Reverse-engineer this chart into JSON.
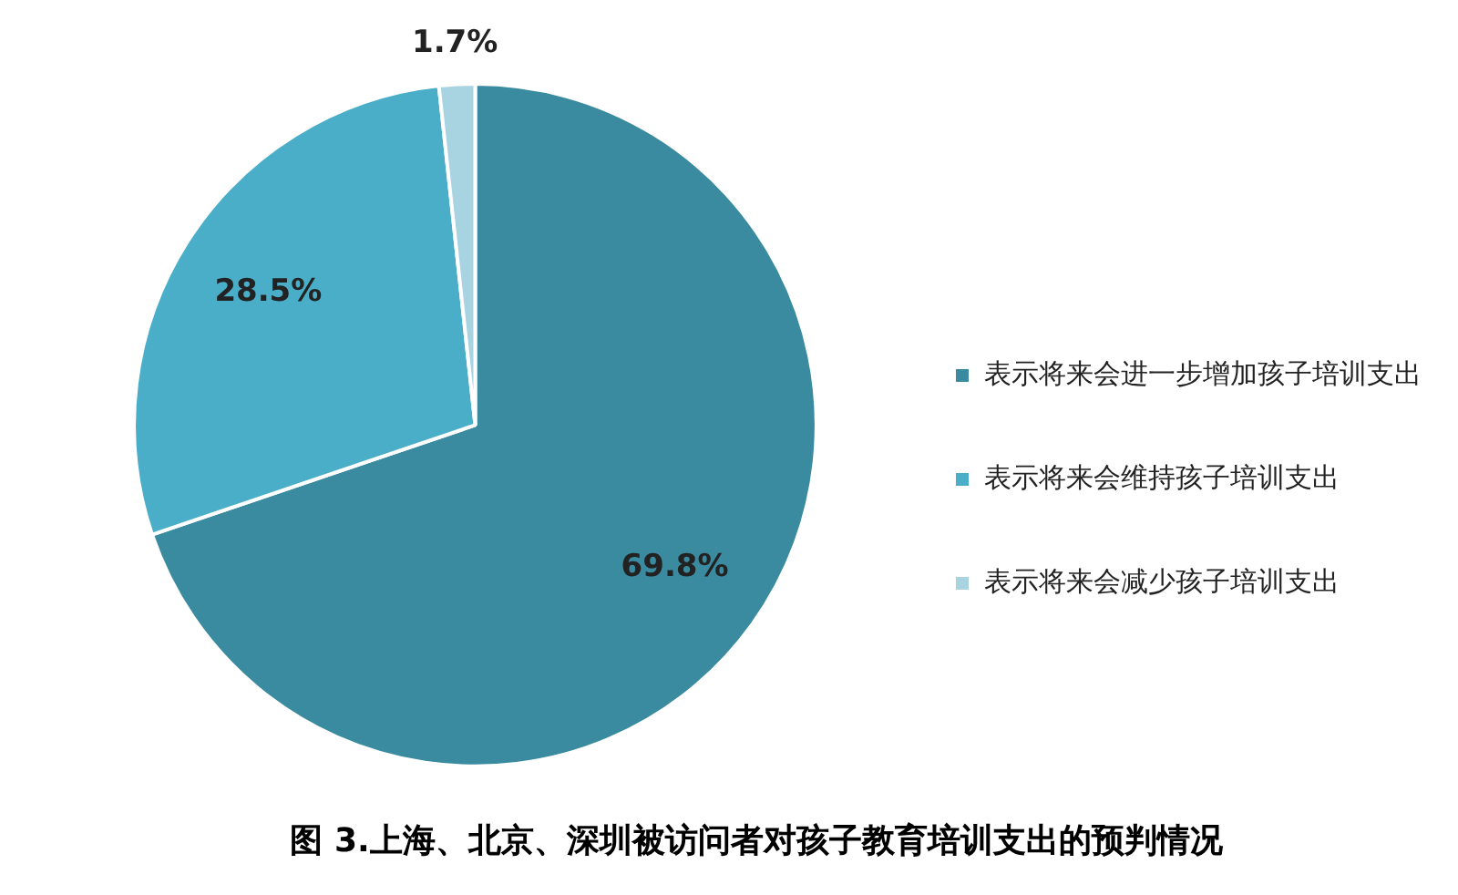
{
  "chart_data": {
    "type": "pie",
    "title": "图 3.上海、北京、深圳被访问者对孩子教育培训支出的预判情况",
    "categories": [
      "表示将来会进一步增加孩子培训支出",
      "表示将来会维持孩子培训支出",
      "表示将来会减少孩子培训支出"
    ],
    "values": [
      69.8,
      28.5,
      1.7
    ],
    "colors": [
      "#3a8aa0",
      "#4aaec8",
      "#a8d3e0"
    ],
    "value_labels": [
      "69.8%",
      "28.5%",
      "1.7%"
    ],
    "legend": "right"
  }
}
